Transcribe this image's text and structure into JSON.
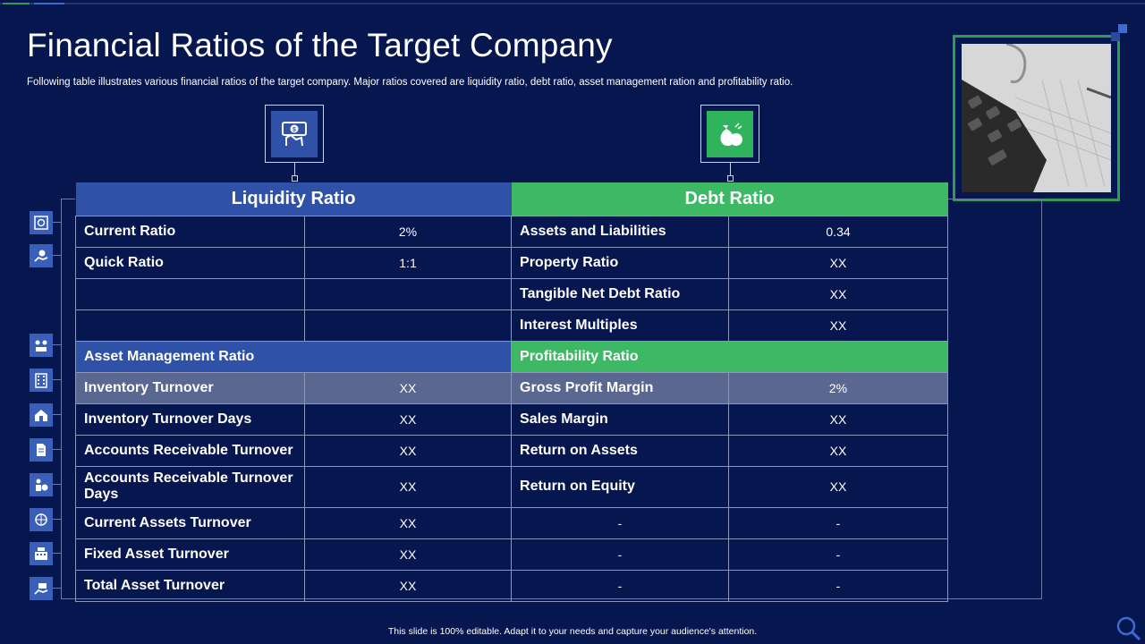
{
  "title": "Financial Ratios of the Target Company",
  "subtitle": "Following table illustrates various financial ratios of the target company. Major ratios covered are liquidity ratio, debt ratio, asset management ration and profitability ratio.",
  "header_icons": [
    "money-hand-icon",
    "money-bag-icon"
  ],
  "side_icons": [
    "safe-icon",
    "hand-coin-icon",
    "team-money-icon",
    "building-icon",
    "house-icon",
    "document-icon",
    "coins-people-icon",
    "globe-money-icon",
    "cash-register-icon",
    "hand-money-icon"
  ],
  "photo": {
    "description_icon": "calculator-photo-icon"
  },
  "table": {
    "liquidity_header": "Liquidity  Ratio",
    "debt_header": "Debt Ratio",
    "asset_mgmt_header": "Asset Management Ratio",
    "profitability_header": "Profitability  Ratio",
    "liquidity_rows": [
      {
        "label": "Current Ratio",
        "value": "2%"
      },
      {
        "label": "Quick Ratio",
        "value": "1:1"
      },
      {
        "label": "",
        "value": ""
      },
      {
        "label": "",
        "value": ""
      }
    ],
    "debt_rows": [
      {
        "label": "Assets and Liabilities",
        "value": "0.34"
      },
      {
        "label": "Property Ratio",
        "value": "XX"
      },
      {
        "label": "Tangible Net Debt Ratio",
        "value": "XX"
      },
      {
        "label": "Interest Multiples",
        "value": "XX"
      }
    ],
    "asset_rows": [
      {
        "label": "Inventory Turnover",
        "value": "XX"
      },
      {
        "label": "Inventory Turnover Days",
        "value": "XX"
      },
      {
        "label": "Accounts Receivable Turnover",
        "value": "XX"
      },
      {
        "label": "Accounts Receivable Turnover Days",
        "value": "XX"
      },
      {
        "label": "Current Assets Turnover",
        "value": "XX"
      },
      {
        "label": "Fixed Asset Turnover",
        "value": "XX"
      },
      {
        "label": "Total Asset Turnover",
        "value": "XX"
      }
    ],
    "profit_rows": [
      {
        "label": "Gross Profit Margin",
        "value": "2%"
      },
      {
        "label": "Sales Margin",
        "value": "XX"
      },
      {
        "label": "Return on Assets",
        "value": "XX"
      },
      {
        "label": "Return on Equity",
        "value": "XX"
      },
      {
        "label": "-",
        "value": "-"
      },
      {
        "label": "-",
        "value": "-"
      },
      {
        "label": "-",
        "value": "-"
      }
    ]
  },
  "footer": "This slide is 100% editable.  Adapt it to your needs and capture your audience's attention.",
  "colors": {
    "background": "#06164f",
    "blue": "#2f52a8",
    "green": "#3db865",
    "highlight": "#5a6791"
  }
}
